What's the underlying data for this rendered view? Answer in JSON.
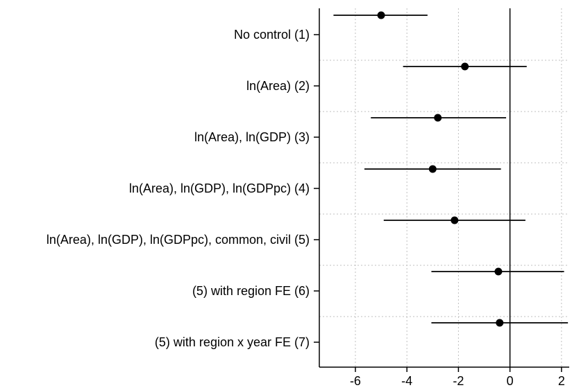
{
  "chart_data": {
    "type": "scatter",
    "title": "",
    "xlabel": "",
    "ylabel": "",
    "xlim": [
      -7.4,
      2.3
    ],
    "x_ticks": [
      -6,
      -4,
      -2,
      0,
      2
    ],
    "x_tick_labels": [
      "-6",
      "-4",
      "-2",
      "0",
      "2"
    ],
    "grid": "dotted vertical at x ticks; dotted horizontal separators between rows",
    "reference_line_x": 0,
    "categories": [
      "No control (1)",
      "ln(Area) (2)",
      "ln(Area), ln(GDP) (3)",
      "ln(Area), ln(GDP), ln(GDPpc) (4)",
      "ln(Area), ln(GDP), ln(GDPpc), common, civil (5)",
      "(5) with region FE (6)",
      "(5) with region x year FE (7)"
    ],
    "series": [
      {
        "estimates": [
          -5.0,
          -1.75,
          -2.8,
          -3.0,
          -2.15,
          -0.45,
          -0.4
        ],
        "ci_low": [
          -6.85,
          -4.15,
          -5.4,
          -5.65,
          -4.9,
          -3.05,
          -3.05
        ],
        "ci_high": [
          -3.2,
          0.65,
          -0.15,
          -0.35,
          0.6,
          2.1,
          2.25
        ]
      }
    ],
    "colors": {
      "marker": "#000000",
      "grid": "#bfbfbf"
    }
  }
}
